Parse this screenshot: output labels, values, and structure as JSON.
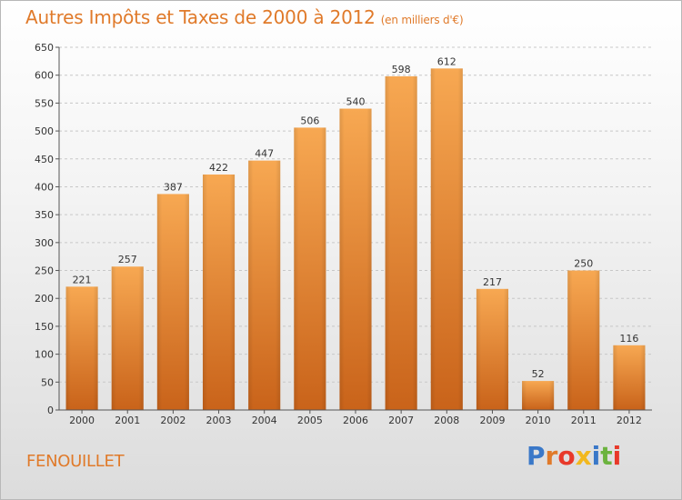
{
  "header": {
    "title": "Autres Impôts et Taxes de 2000 à 2012",
    "unit": "(en milliers d'€)"
  },
  "footer": {
    "commune": "FENOUILLET",
    "logo_text": "Proxiti",
    "logo_colors": [
      "#3a78c8",
      "#e07a2a",
      "#e8392a",
      "#f2b81e",
      "#3a78c8",
      "#6cb33f",
      "#e8392a"
    ]
  },
  "colors": {
    "bar_light": "#f6a34d",
    "bar_dark": "#c9631a",
    "title": "#e07a2a",
    "grid": "#c8c8c8"
  },
  "chart_data": {
    "type": "bar",
    "title": "Autres Impôts et Taxes de 2000 à 2012",
    "subtitle": "(en milliers d'€)",
    "xlabel": "",
    "ylabel": "",
    "categories": [
      "2000",
      "2001",
      "2002",
      "2003",
      "2004",
      "2005",
      "2006",
      "2007",
      "2008",
      "2009",
      "2010",
      "2011",
      "2012"
    ],
    "values": [
      221,
      257,
      387,
      422,
      447,
      506,
      540,
      598,
      612,
      217,
      52,
      250,
      116
    ],
    "ylim": [
      0,
      650
    ],
    "yticks": [
      0,
      50,
      100,
      150,
      200,
      250,
      300,
      350,
      400,
      450,
      500,
      550,
      600,
      650
    ],
    "grid": true,
    "data_labels": true
  }
}
